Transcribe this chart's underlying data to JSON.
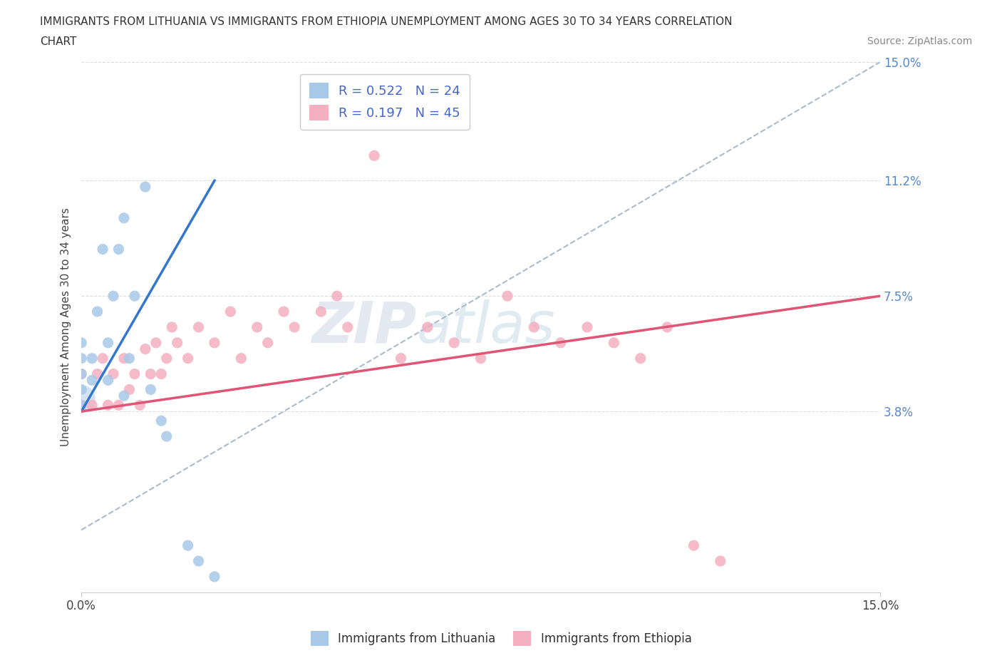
{
  "title_line1": "IMMIGRANTS FROM LITHUANIA VS IMMIGRANTS FROM ETHIOPIA UNEMPLOYMENT AMONG AGES 30 TO 34 YEARS CORRELATION",
  "title_line2": "CHART",
  "source": "Source: ZipAtlas.com",
  "ylabel": "Unemployment Among Ages 30 to 34 years",
  "xmin": 0.0,
  "xmax": 0.15,
  "ymin": -0.02,
  "ymax": 0.15,
  "ytick_vals": [
    0.038,
    0.075,
    0.112,
    0.15
  ],
  "ytick_labels": [
    "3.8%",
    "7.5%",
    "11.2%",
    "15.0%"
  ],
  "xtick_vals": [
    0.0,
    0.15
  ],
  "xtick_labels": [
    "0.0%",
    "15.0%"
  ],
  "r_lithuania": 0.522,
  "n_lithuania": 24,
  "r_ethiopia": 0.197,
  "n_ethiopia": 45,
  "background_color": "#ffffff",
  "grid_color": "#dddddd",
  "watermark_zip": "ZIP",
  "watermark_atlas": "atlas",
  "lithuania_color": "#a8c8e8",
  "ethiopia_color": "#f4afc0",
  "line_lithuania_color": "#3377cc",
  "line_ethiopia_color": "#e05575",
  "diagonal_color": "#aabbcc",
  "lithuania_points_x": [
    0.0,
    0.0,
    0.0,
    0.0,
    0.0,
    0.002,
    0.002,
    0.003,
    0.004,
    0.005,
    0.005,
    0.006,
    0.007,
    0.008,
    0.008,
    0.009,
    0.01,
    0.012,
    0.013,
    0.015,
    0.016,
    0.02,
    0.022,
    0.025
  ],
  "lithuania_points_y": [
    0.04,
    0.045,
    0.05,
    0.055,
    0.06,
    0.048,
    0.055,
    0.07,
    0.09,
    0.048,
    0.06,
    0.075,
    0.09,
    0.043,
    0.1,
    0.055,
    0.075,
    0.11,
    0.045,
    0.035,
    0.03,
    -0.005,
    -0.01,
    -0.015
  ],
  "ethiopia_points_x": [
    0.0,
    0.0,
    0.002,
    0.003,
    0.004,
    0.005,
    0.006,
    0.007,
    0.008,
    0.009,
    0.01,
    0.011,
    0.012,
    0.013,
    0.014,
    0.015,
    0.016,
    0.017,
    0.018,
    0.02,
    0.022,
    0.025,
    0.028,
    0.03,
    0.033,
    0.035,
    0.038,
    0.04,
    0.045,
    0.048,
    0.05,
    0.055,
    0.06,
    0.065,
    0.07,
    0.075,
    0.08,
    0.085,
    0.09,
    0.095,
    0.1,
    0.105,
    0.11,
    0.115,
    0.12
  ],
  "ethiopia_points_y": [
    0.04,
    0.05,
    0.04,
    0.05,
    0.055,
    0.04,
    0.05,
    0.04,
    0.055,
    0.045,
    0.05,
    0.04,
    0.058,
    0.05,
    0.06,
    0.05,
    0.055,
    0.065,
    0.06,
    0.055,
    0.065,
    0.06,
    0.07,
    0.055,
    0.065,
    0.06,
    0.07,
    0.065,
    0.07,
    0.075,
    0.065,
    0.12,
    0.055,
    0.065,
    0.06,
    0.055,
    0.075,
    0.065,
    0.06,
    0.065,
    0.06,
    0.055,
    0.065,
    -0.005,
    -0.01
  ],
  "line_lith_x0": 0.0,
  "line_lith_x1": 0.025,
  "line_lith_y0": 0.038,
  "line_lith_y1": 0.112,
  "line_eth_x0": 0.0,
  "line_eth_x1": 0.15,
  "line_eth_y0": 0.038,
  "line_eth_y1": 0.075
}
